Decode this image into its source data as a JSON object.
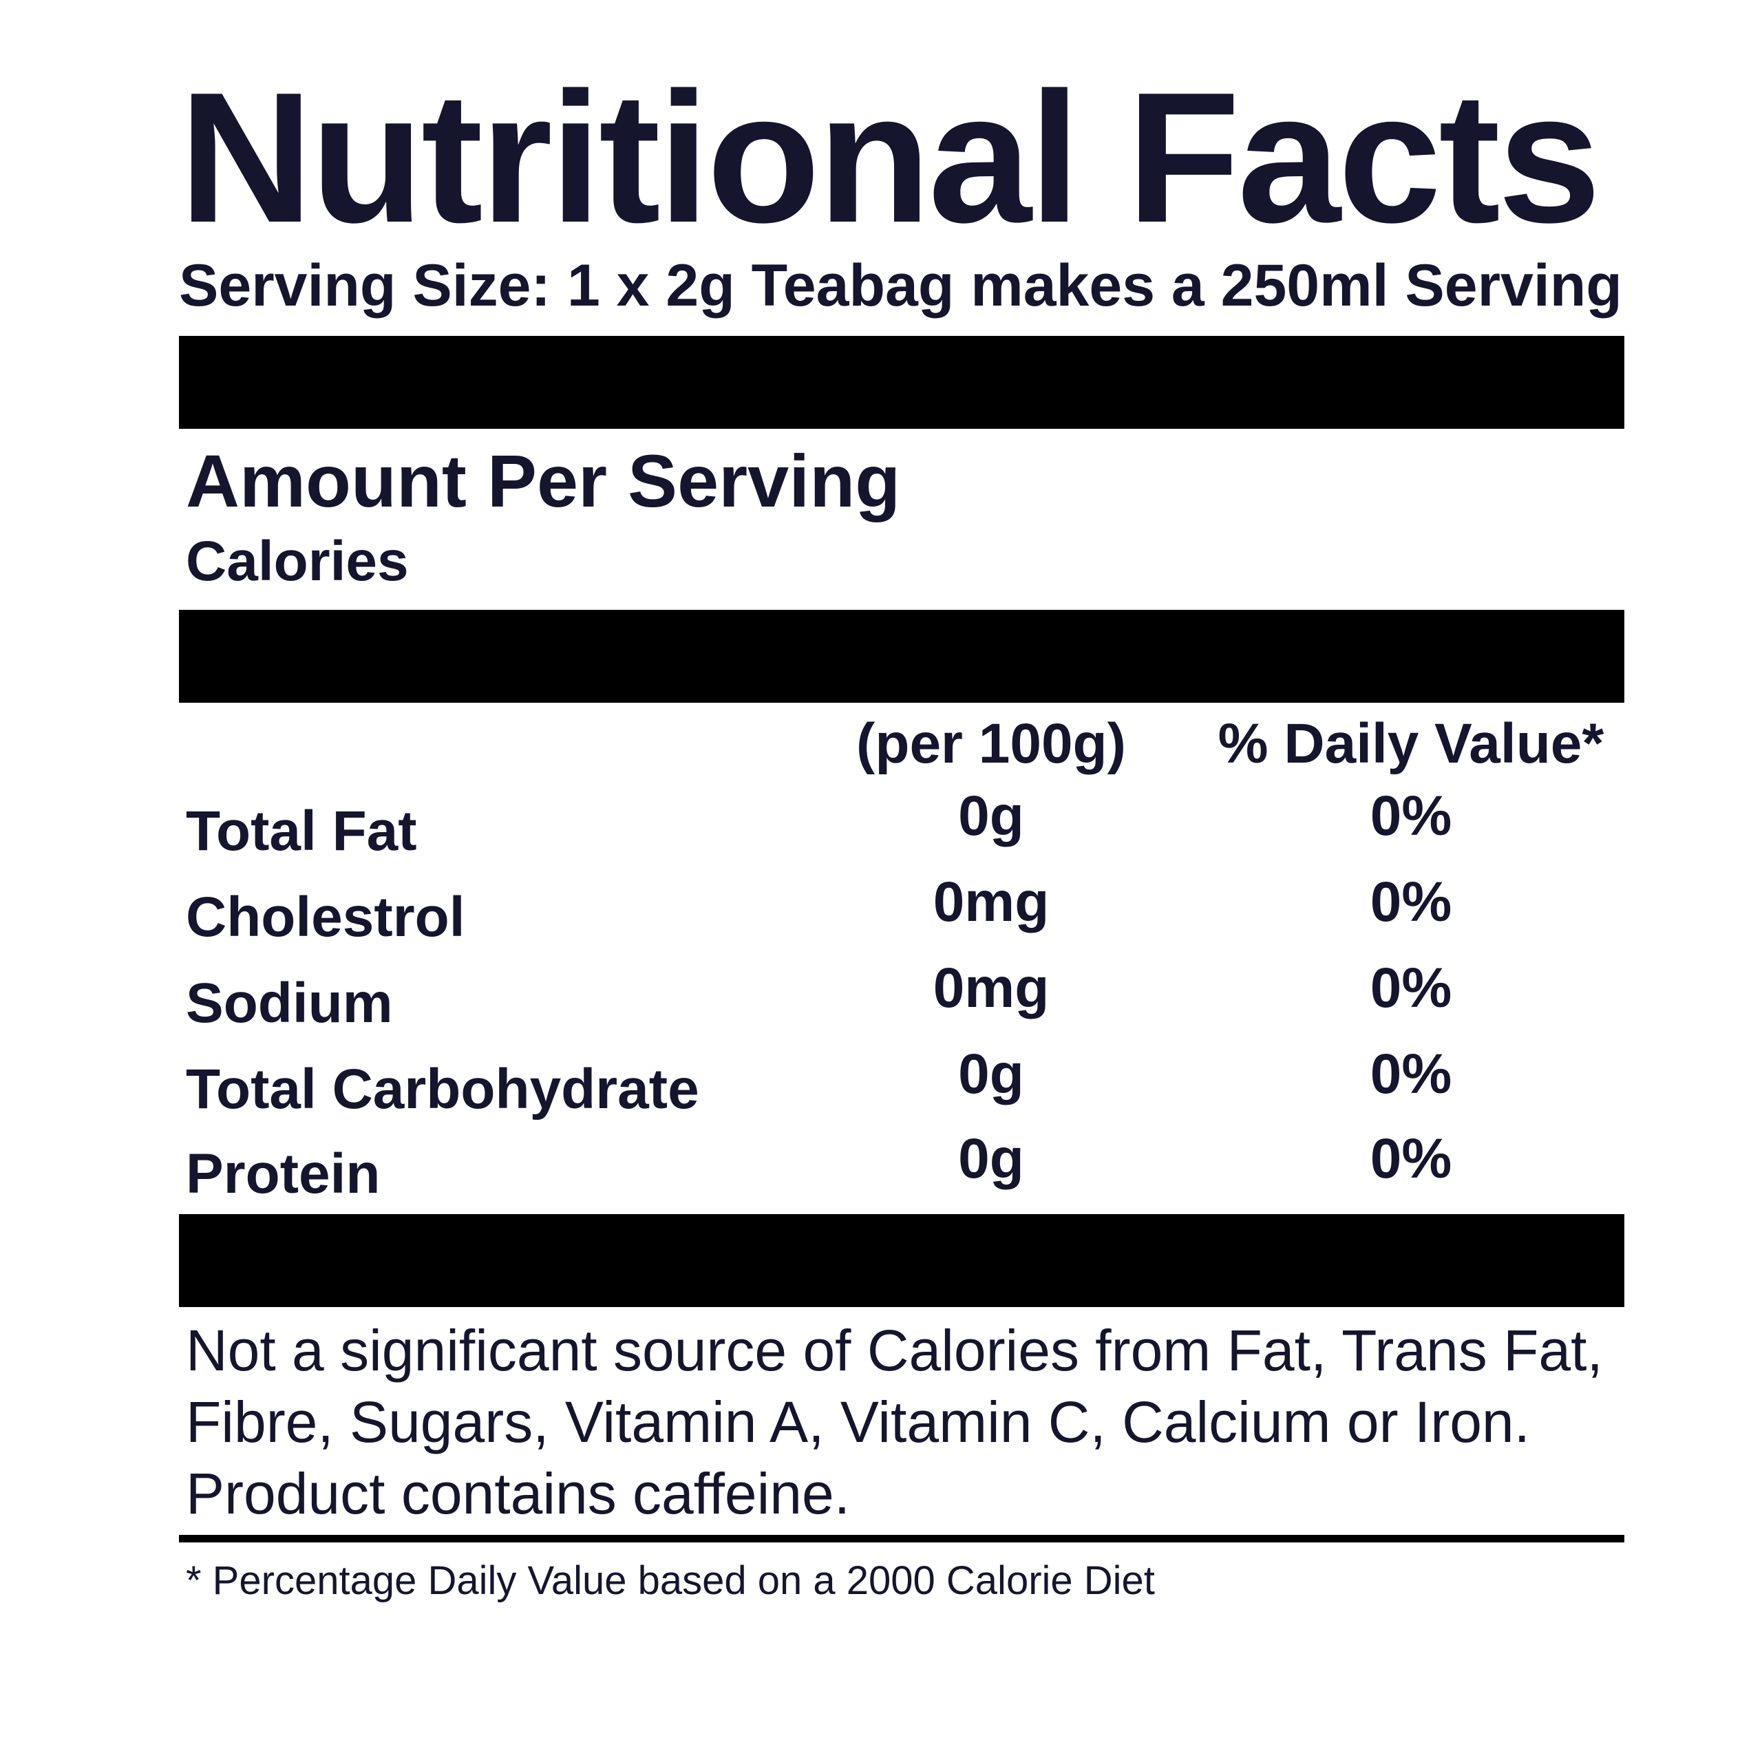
{
  "label": {
    "title": "Nutritional Facts",
    "serving_size": "Serving Size: 1 x 2g Teabag makes a 250ml Serving",
    "amount_heading": "Amount Per Serving",
    "calories_label": "Calories",
    "columns": {
      "per100": "(per 100g)",
      "daily_value": "% Daily Value*"
    },
    "nutrients": [
      {
        "name": "Total Fat",
        "amount": "0g",
        "dv": "0%"
      },
      {
        "name": "Cholestrol",
        "amount": "0mg",
        "dv": "0%"
      },
      {
        "name": "Sodium",
        "amount": "0mg",
        "dv": "0%"
      },
      {
        "name": "Total Carbohydrate",
        "amount": "0g",
        "dv": "0%"
      },
      {
        "name": "Protein",
        "amount": "0g",
        "dv": "0%"
      }
    ],
    "disclaimer_lines": [
      "Not a significant source of Calories from Fat, Trans Fat,",
      "Fibre, Sugars, Vitamin A, Vitamin C, Calcium or Iron.",
      "Product contains caffeine."
    ],
    "footnote": "* Percentage Daily Value based on a 2000 Calorie Diet"
  },
  "colors": {
    "text": "#15152e",
    "bars": "#000000",
    "background": "#ffffff"
  }
}
